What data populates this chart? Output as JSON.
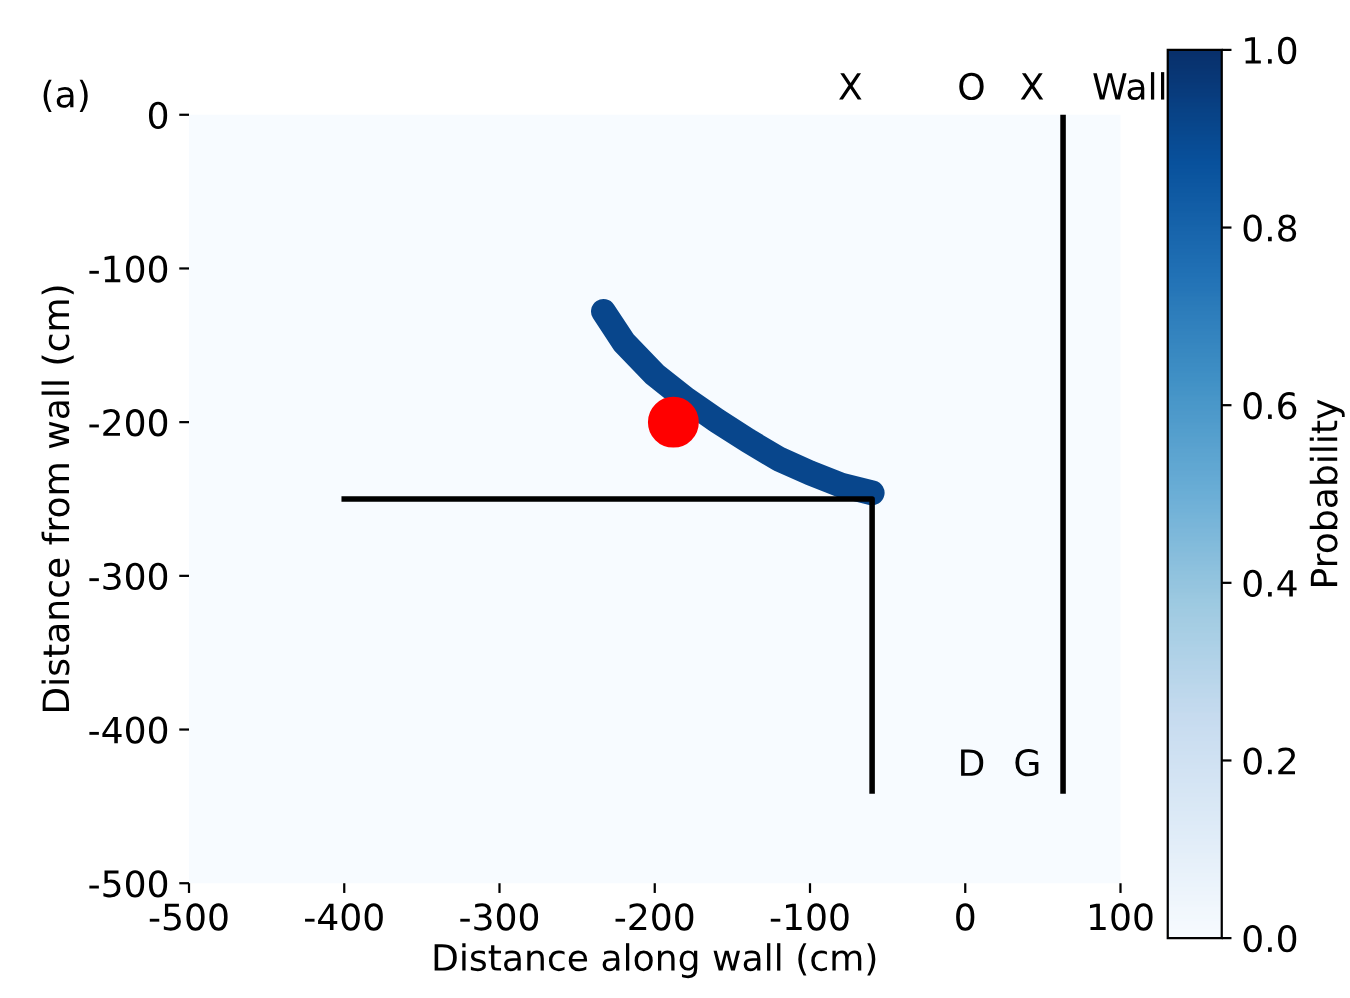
{
  "chart_data": {
    "type": "heatmap",
    "xlabel": "Distance along wall (cm)",
    "ylabel": "Distance from wall (cm)",
    "clabel": "Probability",
    "clim": [
      0,
      1
    ],
    "cticks": [
      {
        "value": 0,
        "label": "0.0"
      },
      {
        "value": 0.2,
        "label": "0.2"
      },
      {
        "value": 0.4,
        "label": "0.4"
      },
      {
        "value": 0.6,
        "label": "0.6"
      },
      {
        "value": 0.8,
        "label": "0.8"
      },
      {
        "value": 1,
        "label": "1.0"
      }
    ],
    "xlim": [
      -500,
      100
    ],
    "ylim": [
      -500,
      0
    ],
    "xticks": [
      -500,
      -400,
      -300,
      -200,
      -100,
      0,
      100
    ],
    "yticks": [
      -500,
      -400,
      -300,
      -200,
      -100,
      0
    ],
    "grid": false,
    "series": [
      {
        "type": "line",
        "color": "#08468c",
        "x": [
          -233,
          -220,
          -200,
          -180,
          -160,
          -140,
          -120,
          -100,
          -80,
          -60
        ],
        "values": [
          -128,
          -148,
          -169,
          -185,
          -199,
          -212,
          -224,
          -233,
          -241,
          -246
        ]
      },
      {
        "type": "line",
        "color": "#000000",
        "x": [
          -400,
          -60,
          -60
        ],
        "values": [
          -250,
          -250,
          -440
        ]
      },
      {
        "type": "line",
        "color": "#000000",
        "x": [
          63,
          63
        ],
        "values": [
          0,
          -440
        ]
      },
      {
        "type": "scatter",
        "color": "#ff0000",
        "x": [
          -188
        ],
        "values": [
          -200
        ]
      }
    ],
    "annotations": [
      "(a)",
      "X",
      "O",
      "X",
      "Wall",
      "D",
      "G"
    ]
  }
}
